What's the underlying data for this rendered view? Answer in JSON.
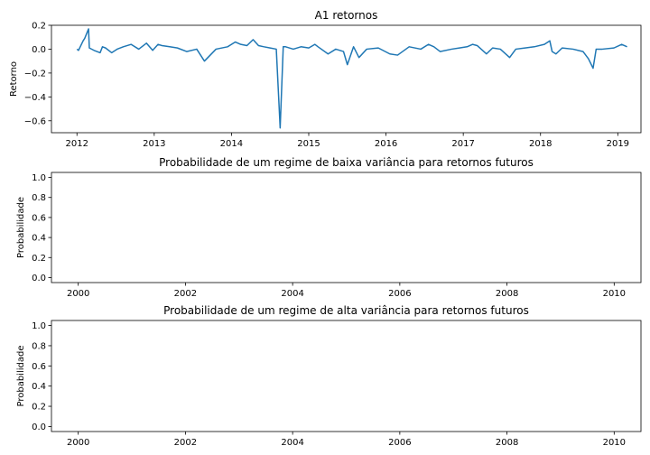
{
  "chart_data": [
    {
      "type": "line",
      "title": "A1 retornos",
      "xlabel": "",
      "ylabel": "Retorno",
      "x_ticks": [
        "2012",
        "2013",
        "2014",
        "2015",
        "2016",
        "2017",
        "2018",
        "2019"
      ],
      "y_ticks": [
        "0.2",
        "0.0",
        "−0.2",
        "−0.4",
        "−0.6"
      ],
      "xlim": [
        2011.67,
        2019.3
      ],
      "ylim": [
        -0.7,
        0.2
      ],
      "grid": false,
      "color": "#1f77b4",
      "series": [
        {
          "x": [
            2012.0,
            2012.02,
            2012.08,
            2012.1,
            2012.15,
            2012.16,
            2012.22,
            2012.3,
            2012.33,
            2012.37,
            2012.45,
            2012.52,
            2012.6,
            2012.7,
            2012.8,
            2012.9,
            2012.98,
            2013.05,
            2013.1,
            2013.2,
            2013.3,
            2013.42,
            2013.55,
            2013.65,
            2013.8,
            2013.95,
            2014.05,
            2014.12,
            2014.2,
            2014.28,
            2014.35,
            2014.42,
            2014.5,
            2014.58,
            2014.63,
            2014.67,
            2014.7,
            2014.8,
            2014.9,
            2015.0,
            2015.08,
            2015.12,
            2015.25,
            2015.35,
            2015.45,
            2015.5,
            2015.58,
            2015.65,
            2015.75,
            2015.9,
            2016.05,
            2016.15,
            2016.3,
            2016.45,
            2016.55,
            2016.62,
            2016.7,
            2016.85,
            2016.95,
            2017.05,
            2017.12,
            2017.18,
            2017.3,
            2017.38,
            2017.48,
            2017.6,
            2017.68,
            2017.8,
            2017.92,
            2018.05,
            2018.12,
            2018.15,
            2018.2,
            2018.28,
            2018.42,
            2018.55,
            2018.62,
            2018.68,
            2018.72,
            2018.8,
            2018.95,
            2019.05,
            2019.12
          ],
          "y": [
            0.0,
            -0.01,
            0.07,
            0.09,
            0.17,
            0.01,
            -0.01,
            -0.03,
            0.02,
            0.01,
            -0.03,
            0.0,
            0.02,
            0.04,
            0.0,
            0.05,
            -0.01,
            0.04,
            0.03,
            0.02,
            0.01,
            -0.02,
            0.0,
            -0.1,
            0.0,
            0.02,
            0.06,
            0.04,
            0.03,
            0.08,
            0.03,
            0.02,
            0.01,
            0.0,
            -0.66,
            0.02,
            0.02,
            0.0,
            0.02,
            0.01,
            0.04,
            0.02,
            -0.04,
            0.0,
            -0.02,
            -0.13,
            0.02,
            -0.07,
            0.0,
            0.01,
            -0.04,
            -0.05,
            0.02,
            0.0,
            0.04,
            0.02,
            -0.02,
            0.0,
            0.01,
            0.02,
            0.04,
            0.03,
            -0.04,
            0.01,
            0.0,
            -0.07,
            0.0,
            0.01,
            0.02,
            0.04,
            0.07,
            -0.02,
            -0.04,
            0.01,
            0.0,
            -0.02,
            -0.08,
            -0.16,
            0.0,
            0.0,
            0.01,
            0.04,
            0.02
          ]
        }
      ]
    },
    {
      "type": "line",
      "title": "Probabilidade de um regime de baixa variância para retornos futuros",
      "xlabel": "",
      "ylabel": "Probabilidade",
      "x_ticks": [
        "2000",
        "2002",
        "2004",
        "2006",
        "2008",
        "2010"
      ],
      "y_ticks": [
        "1.0",
        "0.8",
        "0.6",
        "0.4",
        "0.2",
        "0.0"
      ],
      "xlim": [
        1999.5,
        2010.5
      ],
      "ylim": [
        -0.05,
        1.05
      ],
      "grid": false,
      "series": []
    },
    {
      "type": "line",
      "title": "Probabilidade de um regime de alta variância para retornos futuros",
      "xlabel": "",
      "ylabel": "Probabilidade",
      "x_ticks": [
        "2000",
        "2002",
        "2004",
        "2006",
        "2008",
        "2010"
      ],
      "y_ticks": [
        "1.0",
        "0.8",
        "0.6",
        "0.4",
        "0.2",
        "0.0"
      ],
      "xlim": [
        1999.5,
        2010.5
      ],
      "ylim": [
        -0.05,
        1.05
      ],
      "grid": false,
      "series": []
    }
  ]
}
